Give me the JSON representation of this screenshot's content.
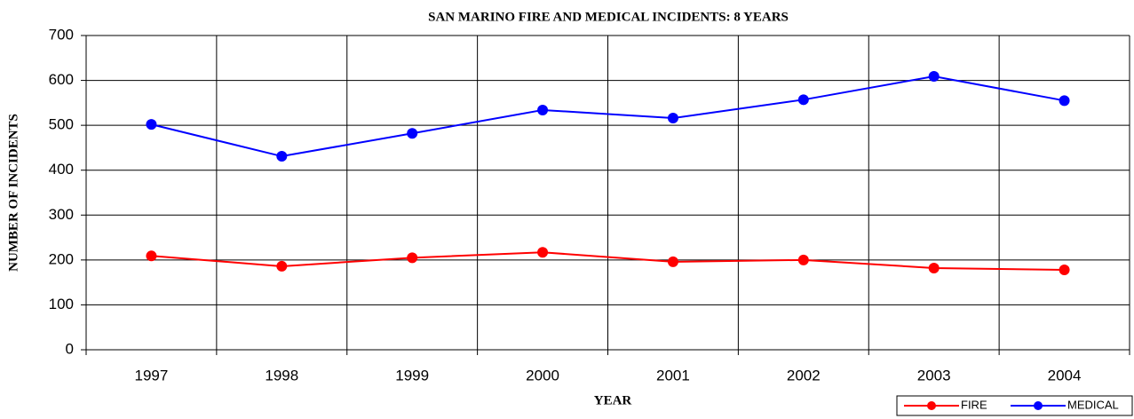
{
  "chart_data": {
    "type": "line",
    "title": "SAN MARINO FIRE AND MEDICAL INCIDENTS: 8 YEARS",
    "x_label": "YEAR",
    "y_label": "NUMBER OF INCIDENTS",
    "categories": [
      "1997",
      "1998",
      "1999",
      "2000",
      "2001",
      "2002",
      "2003",
      "2004"
    ],
    "series": [
      {
        "name": "FIRE",
        "color": "#ff0000",
        "values": [
          209,
          186,
          205,
          217,
          196,
          200,
          182,
          178
        ]
      },
      {
        "name": "MEDICAL",
        "color": "#0000ff",
        "values": [
          502,
          431,
          482,
          534,
          516,
          557,
          609,
          555
        ]
      }
    ],
    "ylim": [
      0,
      700
    ],
    "yticks": [
      0,
      100,
      200,
      300,
      400,
      500,
      600,
      700
    ],
    "grid": true,
    "legend": "lower right"
  }
}
